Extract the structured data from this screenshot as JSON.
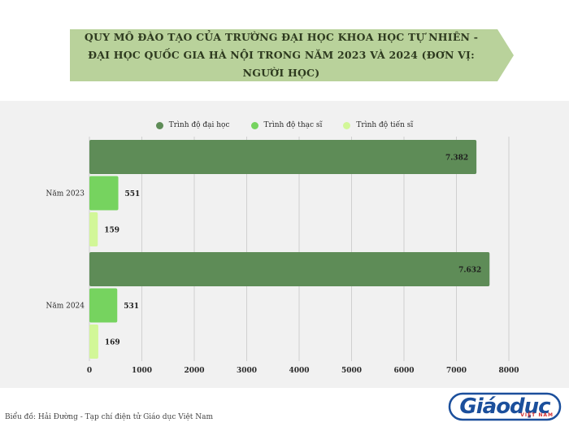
{
  "banner": {
    "line1": "QUY MÔ ĐÀO TẠO CỦA TRƯỜNG ĐẠI HỌC KHOA HỌC TỰ NHIÊN -",
    "line2": "ĐẠI HỌC QUỐC GIA HÀ NỘI TRONG NĂM 2023 VÀ 2024 (ĐƠN VỊ: NGƯỜI HỌC)"
  },
  "legend": [
    {
      "label": "Trình độ đại học",
      "color": "#5e8c57"
    },
    {
      "label": "Trình độ thạc sĩ",
      "color": "#76d35f"
    },
    {
      "label": "Trình độ tiến sĩ",
      "color": "#d2f798"
    }
  ],
  "chart_data": {
    "type": "bar",
    "orientation": "horizontal",
    "categories": [
      "Năm 2023",
      "Năm 2024"
    ],
    "series": [
      {
        "name": "Trình độ đại học",
        "values": [
          7382,
          7632
        ],
        "labels": [
          "7.382",
          "7.632"
        ],
        "color": "#5e8c57"
      },
      {
        "name": "Trình độ thạc sĩ",
        "values": [
          551,
          531
        ],
        "labels": [
          "551",
          "531"
        ],
        "color": "#76d35f"
      },
      {
        "name": "Trình độ tiến sĩ",
        "values": [
          159,
          169
        ],
        "labels": [
          "159",
          "169"
        ],
        "color": "#d2f798"
      }
    ],
    "xlim": [
      0,
      8000
    ],
    "xticks": [
      0,
      1000,
      2000,
      3000,
      4000,
      5000,
      6000,
      7000,
      8000
    ],
    "grid": true,
    "legend_position": "top-center"
  },
  "footer": {
    "credit": "Biểu đồ: Hải Đường - Tạp chí điện tử Giáo dục Việt Nam",
    "logo_main": "Giáodục",
    "logo_sub": "VIỆT NAM"
  }
}
